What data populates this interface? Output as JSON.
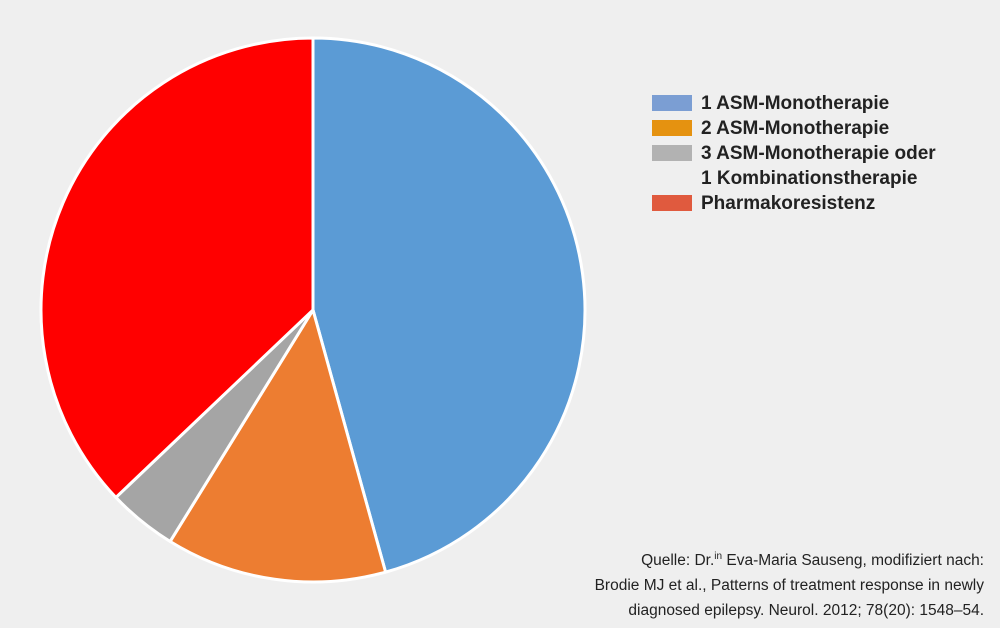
{
  "chart_data": {
    "type": "pie",
    "slices": [
      {
        "label": "1 ASM-Monotherapie",
        "value": 45.7,
        "color": "#5b9bd5",
        "legend_color": "#7b9ed3"
      },
      {
        "label": "2 ASM-Monotherapie",
        "value": 13.1,
        "color": "#ed7d31",
        "legend_color": "#e59210"
      },
      {
        "label": "3 ASM-Monotherapie oder\n1 Kombinationstherapie",
        "value": 4.1,
        "color": "#a5a5a5",
        "legend_color": "#b2b2b2"
      },
      {
        "label": "Pharmakoresistenz",
        "value": 37.1,
        "color": "#ff0000",
        "legend_color": "#e05a3e"
      }
    ],
    "start_angle_deg": 0,
    "direction": "clockwise",
    "legend_placement": "right"
  },
  "legend": {
    "items": [
      {
        "label": "1 ASM-Monotherapie",
        "color": "#7b9ed3"
      },
      {
        "label": "2 ASM-Monotherapie",
        "color": "#e59210"
      },
      {
        "label": "3 ASM-Monotherapie oder\n1 Kombinationstherapie",
        "color": "#b2b2b2"
      },
      {
        "label": "Pharmakoresistenz",
        "color": "#e05a3e"
      }
    ]
  },
  "source": {
    "line1_prefix": "Quelle: Dr.",
    "line1_sup": "in",
    "line1_suffix": " Eva-Maria Sauseng, modifiziert nach:",
    "line2": "Brodie MJ et al., Patterns of treatment response in newly",
    "line3": "diagnosed epilepsy. Neurol. 2012; 78(20): 1548–54."
  },
  "colors": {
    "background": "#efefef",
    "slice_border": "#ffffff"
  }
}
